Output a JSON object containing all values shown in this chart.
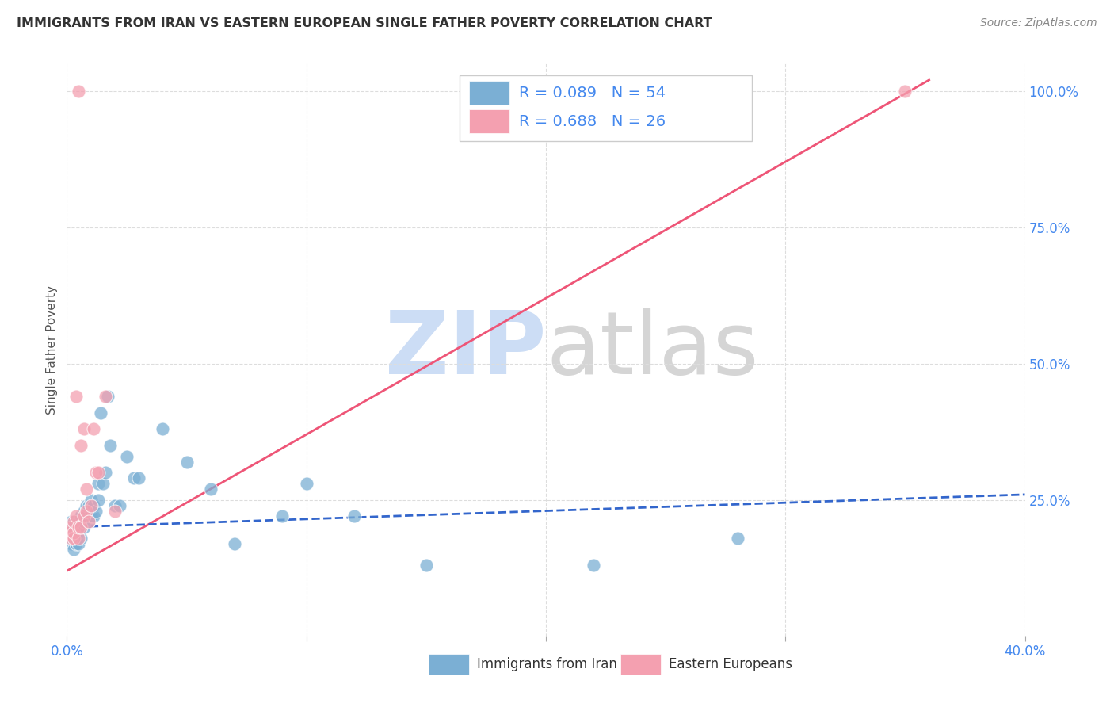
{
  "title": "IMMIGRANTS FROM IRAN VS EASTERN EUROPEAN SINGLE FATHER POVERTY CORRELATION CHART",
  "source": "Source: ZipAtlas.com",
  "ylabel": "Single Father Poverty",
  "legend_label_blue": "Immigrants from Iran",
  "legend_label_pink": "Eastern Europeans",
  "r_blue": 0.089,
  "n_blue": 54,
  "r_pink": 0.688,
  "n_pink": 26,
  "blue_color": "#7bafd4",
  "pink_color": "#f4a0b0",
  "blue_line_color": "#3366cc",
  "pink_line_color": "#ee5577",
  "axis_label_color": "#4488ee",
  "title_color": "#333333",
  "source_color": "#888888",
  "blue_scatter_x": [
    0.001,
    0.001,
    0.001,
    0.002,
    0.002,
    0.002,
    0.003,
    0.003,
    0.003,
    0.003,
    0.004,
    0.004,
    0.004,
    0.005,
    0.005,
    0.005,
    0.005,
    0.006,
    0.006,
    0.006,
    0.007,
    0.007,
    0.007,
    0.008,
    0.008,
    0.009,
    0.009,
    0.01,
    0.01,
    0.011,
    0.011,
    0.012,
    0.013,
    0.013,
    0.014,
    0.015,
    0.016,
    0.017,
    0.018,
    0.02,
    0.022,
    0.025,
    0.028,
    0.03,
    0.04,
    0.05,
    0.06,
    0.07,
    0.09,
    0.1,
    0.12,
    0.15,
    0.22,
    0.28
  ],
  "blue_scatter_y": [
    0.18,
    0.19,
    0.2,
    0.17,
    0.19,
    0.21,
    0.16,
    0.18,
    0.19,
    0.2,
    0.17,
    0.18,
    0.2,
    0.17,
    0.19,
    0.2,
    0.21,
    0.18,
    0.2,
    0.22,
    0.2,
    0.21,
    0.23,
    0.22,
    0.24,
    0.21,
    0.24,
    0.22,
    0.25,
    0.22,
    0.24,
    0.23,
    0.25,
    0.28,
    0.41,
    0.28,
    0.3,
    0.44,
    0.35,
    0.24,
    0.24,
    0.33,
    0.29,
    0.29,
    0.38,
    0.32,
    0.27,
    0.17,
    0.22,
    0.28,
    0.22,
    0.13,
    0.13,
    0.18
  ],
  "pink_scatter_x": [
    0.001,
    0.002,
    0.002,
    0.003,
    0.003,
    0.003,
    0.004,
    0.004,
    0.005,
    0.005,
    0.005,
    0.006,
    0.006,
    0.007,
    0.007,
    0.008,
    0.008,
    0.009,
    0.01,
    0.011,
    0.012,
    0.013,
    0.016,
    0.02,
    0.18,
    0.35
  ],
  "pink_scatter_y": [
    0.19,
    0.18,
    0.2,
    0.18,
    0.19,
    0.21,
    0.22,
    0.44,
    0.18,
    0.2,
    1.0,
    0.2,
    0.35,
    0.22,
    0.38,
    0.23,
    0.27,
    0.21,
    0.24,
    0.38,
    0.3,
    0.3,
    0.44,
    0.23,
    1.0,
    1.0
  ],
  "xlim": [
    0.0,
    0.4
  ],
  "ylim": [
    0.0,
    1.05
  ],
  "ytick_positions": [
    0.25,
    0.5,
    0.75,
    1.0
  ],
  "ytick_labels": [
    "25.0%",
    "50.0%",
    "75.0%",
    "100.0%"
  ],
  "xtick_positions": [
    0.0,
    0.1,
    0.2,
    0.3,
    0.4
  ],
  "xtick_labels": [
    "0.0%",
    "",
    "",
    "",
    "40.0%"
  ],
  "pink_line_x": [
    0.0,
    0.36
  ],
  "pink_line_y": [
    0.12,
    1.02
  ],
  "blue_line_x": [
    0.0,
    0.4
  ],
  "blue_line_y": [
    0.2,
    0.26
  ]
}
